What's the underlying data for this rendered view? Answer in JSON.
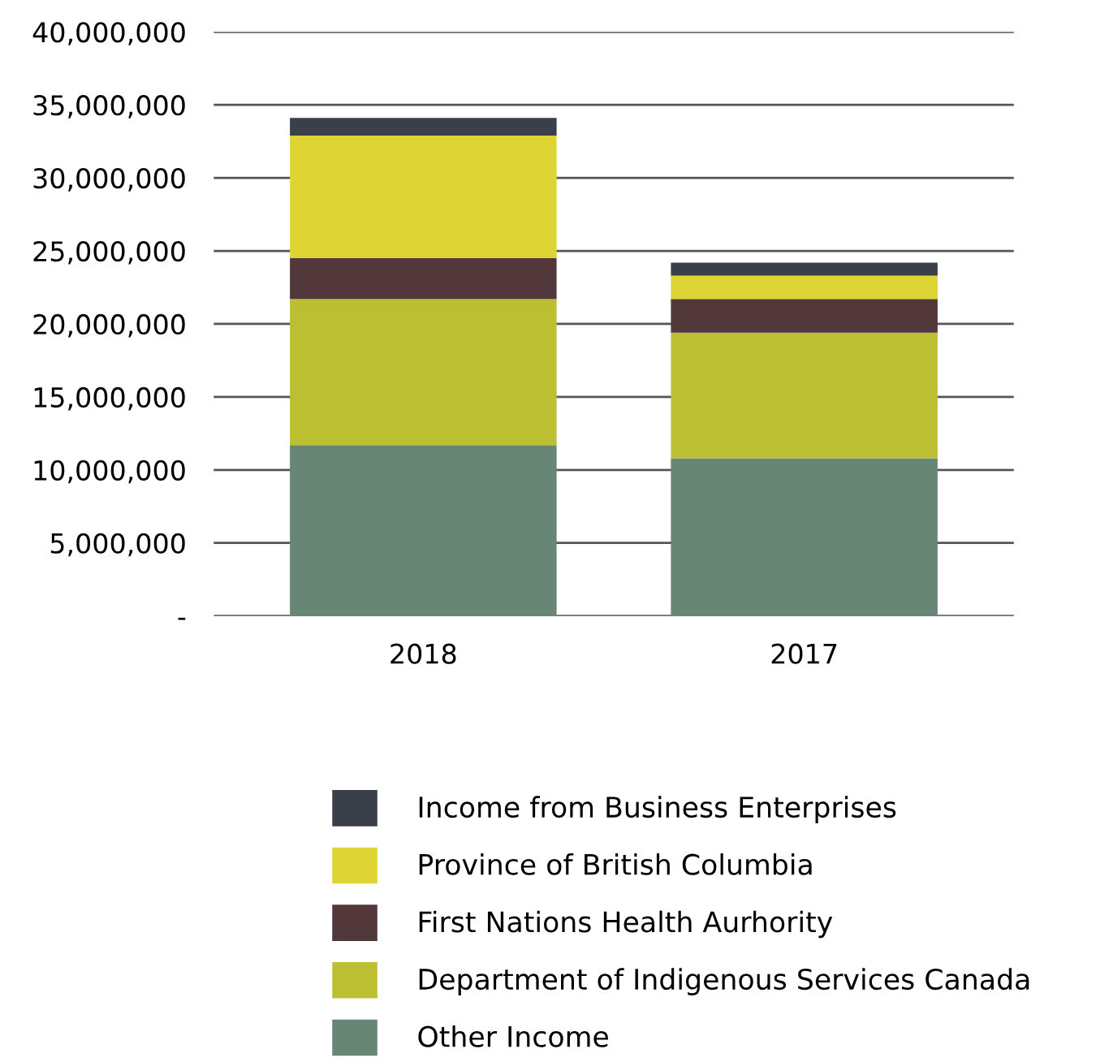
{
  "chart_data": {
    "type": "bar",
    "stacked": true,
    "categories": [
      "2018",
      "2017"
    ],
    "series": [
      {
        "name": "Other Income",
        "color": "#688676",
        "values": [
          11700000,
          10800000
        ]
      },
      {
        "name": "Department of Indigenous Services Canada",
        "color": "#bdbf32",
        "values": [
          10000000,
          8600000
        ]
      },
      {
        "name": "First Nations Health Aurhority",
        "color": "#52373b",
        "values": [
          2800000,
          2300000
        ]
      },
      {
        "name": "Province of British Columbia",
        "color": "#ded535",
        "values": [
          8400000,
          1600000
        ]
      },
      {
        "name": "Income from Business Enterprises",
        "color": "#3a3f4a",
        "values": [
          1200000,
          900000
        ]
      }
    ],
    "ylim": [
      0,
      40000000
    ],
    "yticks": [
      {
        "value": 0,
        "label": "-"
      },
      {
        "value": 5000000,
        "label": "5,000,000"
      },
      {
        "value": 10000000,
        "label": "10,000,000"
      },
      {
        "value": 15000000,
        "label": "15,000,000"
      },
      {
        "value": 20000000,
        "label": "20,000,000"
      },
      {
        "value": 25000000,
        "label": "25,000,000"
      },
      {
        "value": 30000000,
        "label": "30,000,000"
      },
      {
        "value": 35000000,
        "label": "35,000,000"
      },
      {
        "value": 40000000,
        "label": "40,000,000"
      }
    ],
    "grid": "y",
    "legend": "bottom"
  }
}
